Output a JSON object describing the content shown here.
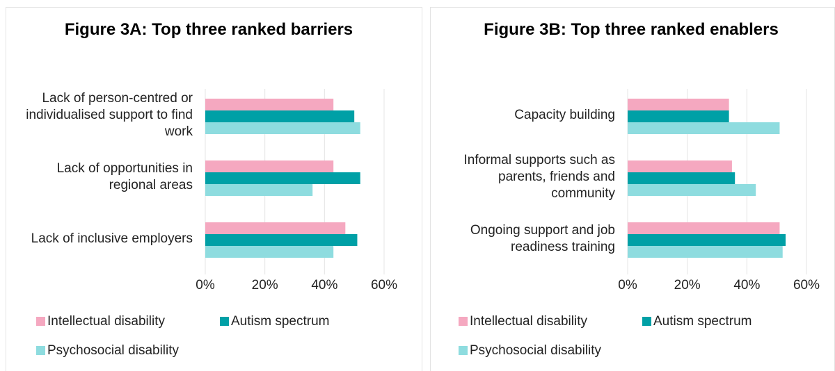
{
  "chart_data": [
    {
      "type": "bar",
      "orientation": "horizontal",
      "title": "Figure 3A: Top three ranked barriers",
      "categories": [
        "Lack of person-centred or individualised support to find work",
        "Lack of opportunities in regional areas",
        "Lack of inclusive employers"
      ],
      "series": [
        {
          "name": "Intellectual disability",
          "color": "#f5a8c0",
          "values": [
            43,
            43,
            47
          ]
        },
        {
          "name": "Autism spectrum",
          "color": "#00a0a6",
          "values": [
            50,
            52,
            51
          ]
        },
        {
          "name": "Psychosocial disability",
          "color": "#8edcdf",
          "values": [
            52,
            36,
            43
          ]
        }
      ],
      "xlim": [
        0,
        60
      ],
      "xticks": [
        {
          "value": 0,
          "label": "0%"
        },
        {
          "value": 20,
          "label": "20%"
        },
        {
          "value": 40,
          "label": "40%"
        },
        {
          "value": 60,
          "label": "60%"
        }
      ],
      "grid": true,
      "legend": "bottom"
    },
    {
      "type": "bar",
      "orientation": "horizontal",
      "title": "Figure 3B: Top three ranked enablers",
      "categories": [
        "Capacity building",
        "Informal supports such as parents, friends and community",
        "Ongoing support and job readiness training"
      ],
      "series": [
        {
          "name": "Intellectual disability",
          "color": "#f5a8c0",
          "values": [
            34,
            35,
            51
          ]
        },
        {
          "name": "Autism spectrum",
          "color": "#00a0a6",
          "values": [
            34,
            36,
            53
          ]
        },
        {
          "name": "Psychosocial disability",
          "color": "#8edcdf",
          "values": [
            51,
            43,
            52
          ]
        }
      ],
      "xlim": [
        0,
        60
      ],
      "xticks": [
        {
          "value": 0,
          "label": "0%"
        },
        {
          "value": 20,
          "label": "20%"
        },
        {
          "value": 40,
          "label": "40%"
        },
        {
          "value": 60,
          "label": "60%"
        }
      ],
      "grid": true,
      "legend": "bottom"
    }
  ]
}
